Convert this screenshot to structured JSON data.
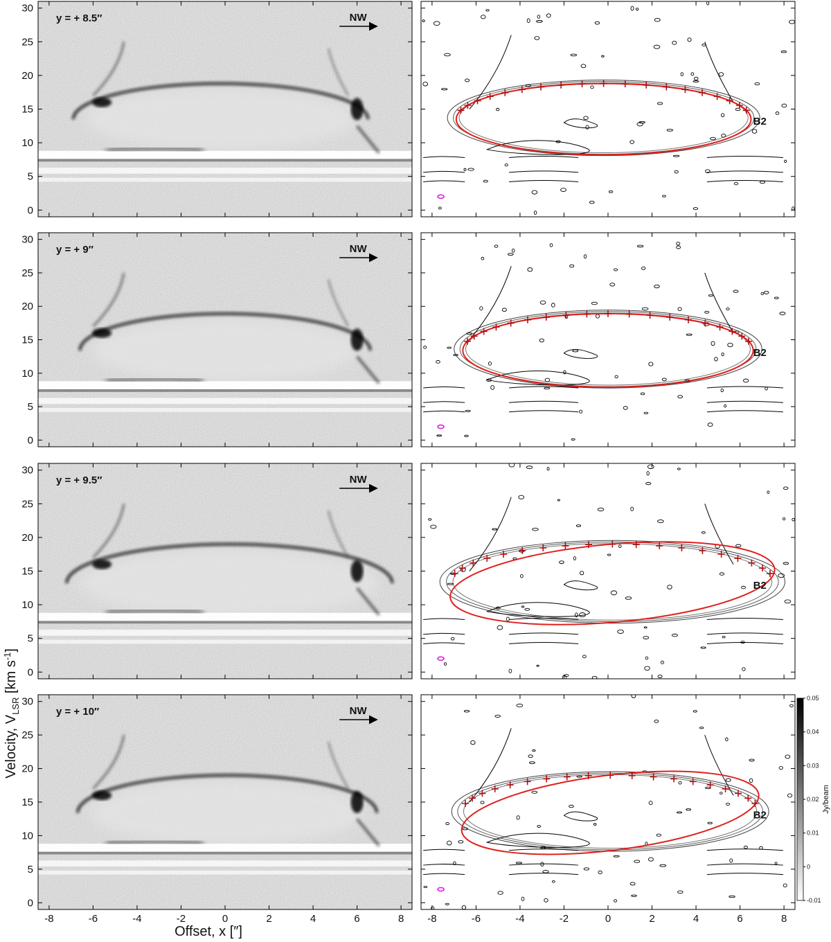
{
  "chart_data": {
    "type": "heatmap",
    "description_of_layout": "4 rows x 2 columns of position-velocity diagrams",
    "xlabel": "Offset, x [″]",
    "ylabel": "Velocity, V",
    "ylabel_sub": "LSR",
    "ylabel_units": "[km s",
    "ylabel_units_sup": "-1",
    "ylabel_units_end": "]",
    "xlim": [
      -8.5,
      8.5
    ],
    "ylim": [
      -1,
      31
    ],
    "xticks": [
      -8,
      -6,
      -4,
      -2,
      0,
      2,
      4,
      6,
      8
    ],
    "yticks": [
      0,
      5,
      10,
      15,
      20,
      25,
      30
    ],
    "direction_label": "NW",
    "source_label": "B2",
    "colorbar": {
      "label": "Jy/beam",
      "range": [
        -0.01,
        0.05
      ],
      "ticks": [
        "-0.01",
        "0",
        "0.01",
        "0.02",
        "0.03",
        "0.04",
        "0.05"
      ]
    },
    "panels": [
      {
        "label": "y = + 8.5″",
        "ellipse": {
          "cx": -0.2,
          "cy": 13.5,
          "rx": 6.7,
          "ry": 5.3,
          "tilt_deg": 0
        },
        "peak_velocity": 19.0
      },
      {
        "label": "y = + 9″",
        "ellipse": {
          "cx": 0.0,
          "cy": 13.4,
          "rx": 6.6,
          "ry": 5.5,
          "tilt_deg": 0
        },
        "peak_velocity": 19.0
      },
      {
        "label": "y = + 9.5″",
        "ellipse": {
          "cx": 0.2,
          "cy": 13.2,
          "rx": 7.4,
          "ry": 5.8,
          "tilt_deg": 5
        },
        "peak_velocity": 19.2
      },
      {
        "label": "y = + 10″",
        "ellipse": {
          "cx": 0.1,
          "cy": 13.4,
          "rx": 6.8,
          "ry": 5.6,
          "tilt_deg": 7
        },
        "peak_velocity": 19.0
      }
    ]
  }
}
